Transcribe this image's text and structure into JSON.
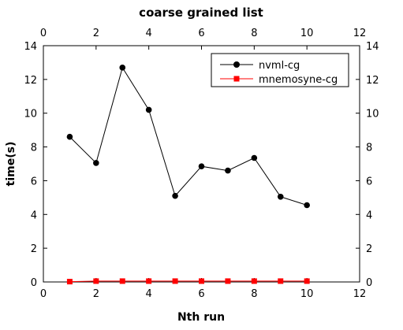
{
  "chart_data": {
    "type": "line",
    "title": "coarse grained list",
    "xlabel": "Nth run",
    "ylabel": "time(s)",
    "xlim": [
      0,
      12
    ],
    "ylim": [
      0,
      14
    ],
    "xticks": [
      0,
      2,
      4,
      6,
      8,
      10,
      12
    ],
    "yticks": [
      0,
      2,
      4,
      6,
      8,
      10,
      12,
      14
    ],
    "grid": false,
    "legend_position": "top-right",
    "series": [
      {
        "name": "nvml-cg",
        "color": "#000000",
        "marker": "circle",
        "x": [
          1,
          2,
          3,
          4,
          5,
          6,
          7,
          8,
          9,
          10
        ],
        "y": [
          8.6,
          7.05,
          12.7,
          10.2,
          5.1,
          6.85,
          6.6,
          7.35,
          5.05,
          4.55
        ]
      },
      {
        "name": "mnemosyne-cg",
        "color": "#ff0000",
        "marker": "square",
        "x": [
          1,
          2,
          3,
          4,
          5,
          6,
          7,
          8,
          9,
          10
        ],
        "y": [
          0.02,
          0.05,
          0.05,
          0.05,
          0.05,
          0.05,
          0.05,
          0.05,
          0.05,
          0.05
        ]
      }
    ]
  }
}
